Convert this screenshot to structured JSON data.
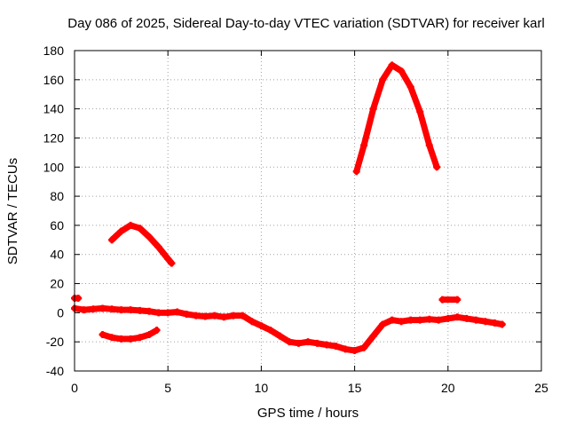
{
  "chart_data": {
    "type": "scatter",
    "title": "Day 086 of 2025, Sidereal Day-to-day VTEC variation (SDTVAR) for receiver karl",
    "xlabel": "GPS time / hours",
    "ylabel": "SDTVAR / TECUs",
    "xlim": [
      0,
      25
    ],
    "ylim": [
      -40,
      180
    ],
    "xticks": [
      "0",
      "5",
      "10",
      "15",
      "20",
      "25"
    ],
    "yticks": [
      "-40",
      "-20",
      "0",
      "20",
      "40",
      "60",
      "80",
      "100",
      "120",
      "140",
      "160",
      "180"
    ],
    "grid": true,
    "series": [
      {
        "name": "main-trace",
        "color": "#ff0000",
        "points": [
          [
            0.0,
            3
          ],
          [
            0.5,
            2
          ],
          [
            1.0,
            2.5
          ],
          [
            1.5,
            3
          ],
          [
            2.0,
            2.5
          ],
          [
            2.5,
            2
          ],
          [
            3.0,
            2
          ],
          [
            3.5,
            1.5
          ],
          [
            4.0,
            1
          ],
          [
            4.5,
            0
          ],
          [
            5.0,
            0
          ],
          [
            5.5,
            0.5
          ],
          [
            6.0,
            -1
          ],
          [
            6.5,
            -2
          ],
          [
            7.0,
            -2.5
          ],
          [
            7.5,
            -2
          ],
          [
            8.0,
            -3
          ],
          [
            8.5,
            -2
          ],
          [
            9.0,
            -2
          ],
          [
            9.5,
            -6
          ],
          [
            10.0,
            -9
          ],
          [
            10.5,
            -12
          ],
          [
            11.0,
            -16
          ],
          [
            11.5,
            -20
          ],
          [
            12.0,
            -21
          ],
          [
            12.5,
            -20
          ],
          [
            13.0,
            -21
          ],
          [
            13.5,
            -22
          ],
          [
            14.0,
            -23
          ],
          [
            14.5,
            -25
          ],
          [
            15.0,
            -26
          ],
          [
            15.5,
            -24
          ],
          [
            16.0,
            -16
          ],
          [
            16.5,
            -8
          ],
          [
            17.0,
            -5
          ],
          [
            17.5,
            -6
          ],
          [
            18.0,
            -5
          ],
          [
            18.5,
            -5
          ],
          [
            19.0,
            -4.5
          ],
          [
            19.5,
            -5
          ],
          [
            20.0,
            -4
          ],
          [
            20.5,
            -3
          ],
          [
            21.0,
            -4
          ],
          [
            21.5,
            -5
          ],
          [
            22.0,
            -6
          ],
          [
            22.5,
            -7
          ],
          [
            22.9,
            -8
          ]
        ]
      },
      {
        "name": "lower-arc",
        "color": "#ff0000",
        "points": [
          [
            1.5,
            -15
          ],
          [
            2.0,
            -17
          ],
          [
            2.5,
            -18
          ],
          [
            3.0,
            -18
          ],
          [
            3.5,
            -17
          ],
          [
            4.0,
            -15
          ],
          [
            4.4,
            -12
          ]
        ]
      },
      {
        "name": "upper-arc",
        "color": "#ff0000",
        "points": [
          [
            2.0,
            50
          ],
          [
            2.5,
            56
          ],
          [
            3.0,
            60
          ],
          [
            3.5,
            58
          ],
          [
            4.0,
            52
          ],
          [
            4.5,
            45
          ],
          [
            5.0,
            37
          ],
          [
            5.2,
            34
          ]
        ]
      },
      {
        "name": "large-arc",
        "color": "#ff0000",
        "points": [
          [
            15.1,
            97
          ],
          [
            15.5,
            115
          ],
          [
            16.0,
            140
          ],
          [
            16.5,
            160
          ],
          [
            17.0,
            170
          ],
          [
            17.5,
            166
          ],
          [
            18.0,
            155
          ],
          [
            18.5,
            138
          ],
          [
            19.0,
            115
          ],
          [
            19.4,
            100
          ]
        ]
      },
      {
        "name": "start-segment",
        "color": "#ff0000",
        "points": [
          [
            0.0,
            10
          ],
          [
            0.2,
            10
          ]
        ]
      },
      {
        "name": "late-segment",
        "color": "#ff0000",
        "points": [
          [
            19.7,
            9
          ],
          [
            20.5,
            9
          ]
        ]
      }
    ]
  }
}
